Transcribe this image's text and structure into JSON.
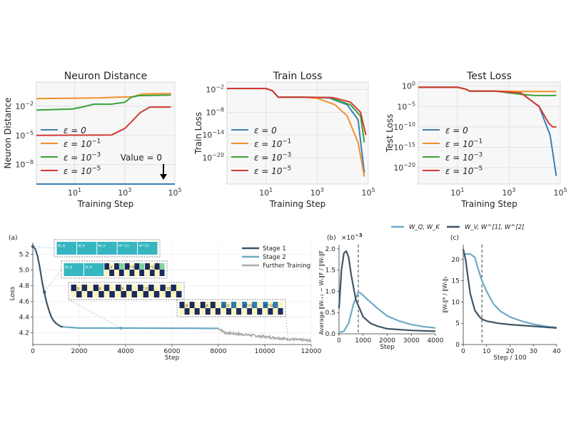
{
  "chart_data": [
    {
      "type": "line",
      "title": "Neuron Distance",
      "xlabel": "Training Step",
      "ylabel": "Neuron Distance",
      "xscale": "log",
      "yscale": "log",
      "xlim": [
        0.3,
        100000
      ],
      "ylim": [
        1e-10,
        3
      ],
      "xticks": [
        "10^1",
        "10^3",
        "10^5"
      ],
      "yticks": [
        "10^-2",
        "10^-5",
        "10^-8"
      ],
      "legend": "bottom-left",
      "annotation": "Value = 0",
      "grid": true,
      "series": [
        {
          "name": "ε = 0",
          "color": "#3a7fb5",
          "x": [
            0.3,
            100000
          ],
          "y": [
            1e-10,
            1e-10
          ]
        },
        {
          "name": "ε = 10^-1",
          "color": "#f28e2b",
          "x": [
            0.3,
            100,
            300,
            800,
            2000,
            5000,
            70000
          ],
          "y": [
            0.06,
            0.07,
            0.08,
            0.085,
            0.09,
            0.18,
            0.2
          ]
        },
        {
          "name": "ε = 10^-3",
          "color": "#3aa33a",
          "x": [
            0.3,
            8,
            20,
            60,
            300,
            1000,
            1800,
            3500,
            70000
          ],
          "y": [
            0.004,
            0.005,
            0.008,
            0.016,
            0.016,
            0.025,
            0.08,
            0.12,
            0.14
          ]
        },
        {
          "name": "ε = 10^-5",
          "color": "#d23a34",
          "x": [
            0.3,
            300,
            1000,
            2000,
            4000,
            10000,
            70000
          ],
          "y": [
            1e-05,
            1.1e-05,
            5e-05,
            0.0003,
            0.002,
            0.008,
            0.008
          ]
        }
      ]
    },
    {
      "type": "line",
      "title": "Train Loss",
      "xlabel": "Training Step",
      "ylabel": "Train Loss",
      "xscale": "log",
      "yscale": "log",
      "xlim": [
        0.3,
        100000
      ],
      "ylim": [
        1e-27,
        1
      ],
      "xticks": [
        "10^1",
        "10^3",
        "10^5"
      ],
      "yticks": [
        "10^-2",
        "10^-8",
        "10^-14",
        "10^-20"
      ],
      "legend": "bottom-left",
      "grid": true,
      "series": [
        {
          "name": "ε = 0",
          "color": "#3a7fb5",
          "x": [
            0.3,
            10,
            18,
            30,
            300,
            3000,
            15000,
            40000,
            70000
          ],
          "y": [
            0.02,
            0.02,
            0.005,
            0.0001,
            0.0001,
            6e-05,
            1e-06,
            1e-10,
            1e-24
          ]
        },
        {
          "name": "ε = 10^-1",
          "color": "#f28e2b",
          "x": [
            0.3,
            10,
            18,
            30,
            300,
            1000,
            5000,
            15000,
            40000,
            70000
          ],
          "y": [
            0.02,
            0.02,
            0.005,
            0.0001,
            0.0001,
            5e-05,
            1e-06,
            1e-09,
            1e-16,
            1e-25
          ]
        },
        {
          "name": "ε = 10^-3",
          "color": "#3aa33a",
          "x": [
            0.3,
            10,
            18,
            30,
            300,
            3000,
            20000,
            50000,
            70000
          ],
          "y": [
            0.02,
            0.02,
            0.005,
            0.0001,
            0.0001,
            8e-05,
            1e-06,
            1e-09,
            1e-16
          ]
        },
        {
          "name": "ε = 10^-5",
          "color": "#d23a34",
          "x": [
            0.3,
            10,
            18,
            30,
            300,
            4000,
            20000,
            50000,
            80000
          ],
          "y": [
            0.02,
            0.02,
            0.005,
            0.0001,
            0.0001,
            8e-05,
            5e-06,
            1e-08,
            1e-14
          ]
        }
      ]
    },
    {
      "type": "line",
      "title": "Test Loss",
      "xlabel": "Training Step",
      "ylabel": "Test Loss",
      "xscale": "log",
      "yscale": "log",
      "xlim": [
        0.3,
        100000
      ],
      "ylim": [
        1e-24,
        10
      ],
      "xticks": [
        "10^1",
        "10^3",
        "10^5"
      ],
      "yticks": [
        "10^0",
        "10^-5",
        "10^-10",
        "10^-15",
        "10^-20"
      ],
      "legend": "bottom-left",
      "grid": true,
      "series": [
        {
          "name": "ε = 0",
          "color": "#3a7fb5",
          "x": [
            0.3,
            10,
            20,
            30,
            300,
            3000,
            15000,
            40000,
            70000
          ],
          "y": [
            0.5,
            0.5,
            0.2,
            0.06,
            0.06,
            0.02,
            1e-05,
            1e-12,
            1e-22
          ]
        },
        {
          "name": "ε = 10^-1",
          "color": "#f28e2b",
          "x": [
            0.3,
            10,
            20,
            30,
            300,
            3000,
            70000
          ],
          "y": [
            0.5,
            0.5,
            0.2,
            0.06,
            0.06,
            0.05,
            0.05
          ]
        },
        {
          "name": "ε = 10^-3",
          "color": "#3aa33a",
          "x": [
            0.3,
            10,
            20,
            30,
            300,
            3000,
            10000,
            70000
          ],
          "y": [
            0.5,
            0.5,
            0.2,
            0.06,
            0.06,
            0.01,
            0.005,
            0.005
          ]
        },
        {
          "name": "ε = 10^-5",
          "color": "#d23a34",
          "x": [
            0.3,
            10,
            20,
            30,
            300,
            3000,
            15000,
            35000,
            50000,
            70000
          ],
          "y": [
            0.5,
            0.5,
            0.2,
            0.06,
            0.06,
            0.02,
            1e-05,
            1e-09,
            1e-10,
            1e-10
          ]
        }
      ]
    },
    {
      "type": "line",
      "panel_label": "(a)",
      "xlabel": "Step",
      "ylabel": "Loss",
      "xlim": [
        0,
        12000
      ],
      "ylim": [
        4.05,
        5.35
      ],
      "xticks": [
        0,
        2000,
        4000,
        6000,
        8000,
        10000,
        12000
      ],
      "yticks": [
        4.2,
        4.4,
        4.6,
        4.8,
        5.0,
        5.2
      ],
      "legend": "top-right",
      "grid": true,
      "series": [
        {
          "name": "Stage 1",
          "color": "#3f5566",
          "x": [
            0,
            100,
            200,
            300,
            400,
            500,
            600,
            700,
            800,
            900,
            1000,
            1100,
            1200,
            1300
          ],
          "y": [
            5.3,
            5.27,
            5.18,
            5.03,
            4.85,
            4.7,
            4.58,
            4.48,
            4.4,
            4.35,
            4.32,
            4.3,
            4.28,
            4.275
          ]
        },
        {
          "name": "Stage 2",
          "color": "#6ea9c7",
          "x": [
            1300,
            2000,
            4000,
            6000,
            8000
          ],
          "y": [
            4.275,
            4.26,
            4.26,
            4.258,
            4.255
          ]
        },
        {
          "name": "Further Training",
          "color": "#aaaaaa",
          "x": [
            8000,
            8300,
            9000,
            10000,
            11000,
            12000
          ],
          "y": [
            4.255,
            4.2,
            4.18,
            4.15,
            4.12,
            4.1
          ]
        }
      ],
      "inset_labels": [
        [
          "W_Q",
          "W_K",
          "W_V",
          "W^(1)",
          "W^(2)"
        ],
        [
          "W_Q",
          "W_K",
          "W_V",
          "W^(1)",
          "W^(2)"
        ],
        [
          "W_Q",
          "W_K",
          "W_V",
          "W^(1)",
          "W^(2)"
        ],
        [
          "W_Q",
          "W_K",
          "W_V",
          "W^(1)",
          "W^(2)"
        ]
      ]
    },
    {
      "type": "line",
      "panel_label": "(b)",
      "xlabel": "Step",
      "ylabel": "Average ‖W_{t+1} − W_t‖_F / ‖W_t‖_F",
      "scale_note": "×10^-3",
      "xlim": [
        0,
        4000
      ],
      "ylim": [
        0,
        2.1
      ],
      "xticks": [
        0,
        1000,
        2000,
        3000,
        4000
      ],
      "yticks": [
        0.0,
        0.5,
        1.0,
        1.5,
        2.0
      ],
      "vline_x": 800,
      "series": [
        {
          "name": "W_Q, W_K",
          "color": "#6ea9c7",
          "x": [
            0,
            200,
            400,
            600,
            800,
            900,
            1200,
            1600,
            2000,
            2500,
            3000,
            3500,
            4000
          ],
          "y": [
            0.03,
            0.06,
            0.25,
            0.7,
            0.98,
            0.96,
            0.8,
            0.6,
            0.42,
            0.3,
            0.22,
            0.17,
            0.14
          ]
        },
        {
          "name": "W_V, W^[1], W^[2]",
          "color": "#3f5566",
          "x": [
            0,
            100,
            200,
            300,
            400,
            500,
            700,
            1000,
            1300,
            1600,
            2000,
            3000,
            4000
          ],
          "y": [
            0.6,
            1.5,
            1.9,
            1.95,
            1.8,
            1.4,
            0.8,
            0.4,
            0.25,
            0.18,
            0.12,
            0.08,
            0.06
          ]
        }
      ]
    },
    {
      "type": "line",
      "panel_label": "(c)",
      "xlabel": "Step / 100",
      "ylabel": "‖W_t‖_* / ‖W_t‖_2",
      "xlim": [
        0,
        40
      ],
      "ylim": [
        0,
        23.5
      ],
      "xticks": [
        0,
        10,
        20,
        30,
        40
      ],
      "yticks": [
        0,
        5,
        10,
        15,
        20
      ],
      "vline_x": 8,
      "series": [
        {
          "name": "W_Q, W_K",
          "color": "#6ea9c7",
          "x": [
            0,
            1,
            3,
            5,
            6,
            8,
            10,
            13,
            16,
            20,
            25,
            30,
            35,
            40
          ],
          "y": [
            21,
            21.3,
            21.3,
            20.5,
            18.5,
            15,
            12.5,
            9.5,
            7.8,
            6.5,
            5.5,
            4.8,
            4.3,
            4.0
          ]
        },
        {
          "name": "W_V, W^[1], W^[2]",
          "color": "#3f5566",
          "x": [
            0,
            1,
            2,
            3,
            5,
            7,
            8,
            10,
            15,
            20,
            30,
            40
          ],
          "y": [
            22.5,
            20,
            16,
            12,
            8,
            6.5,
            6,
            5.5,
            5.0,
            4.7,
            4.3,
            3.9
          ]
        }
      ]
    }
  ]
}
